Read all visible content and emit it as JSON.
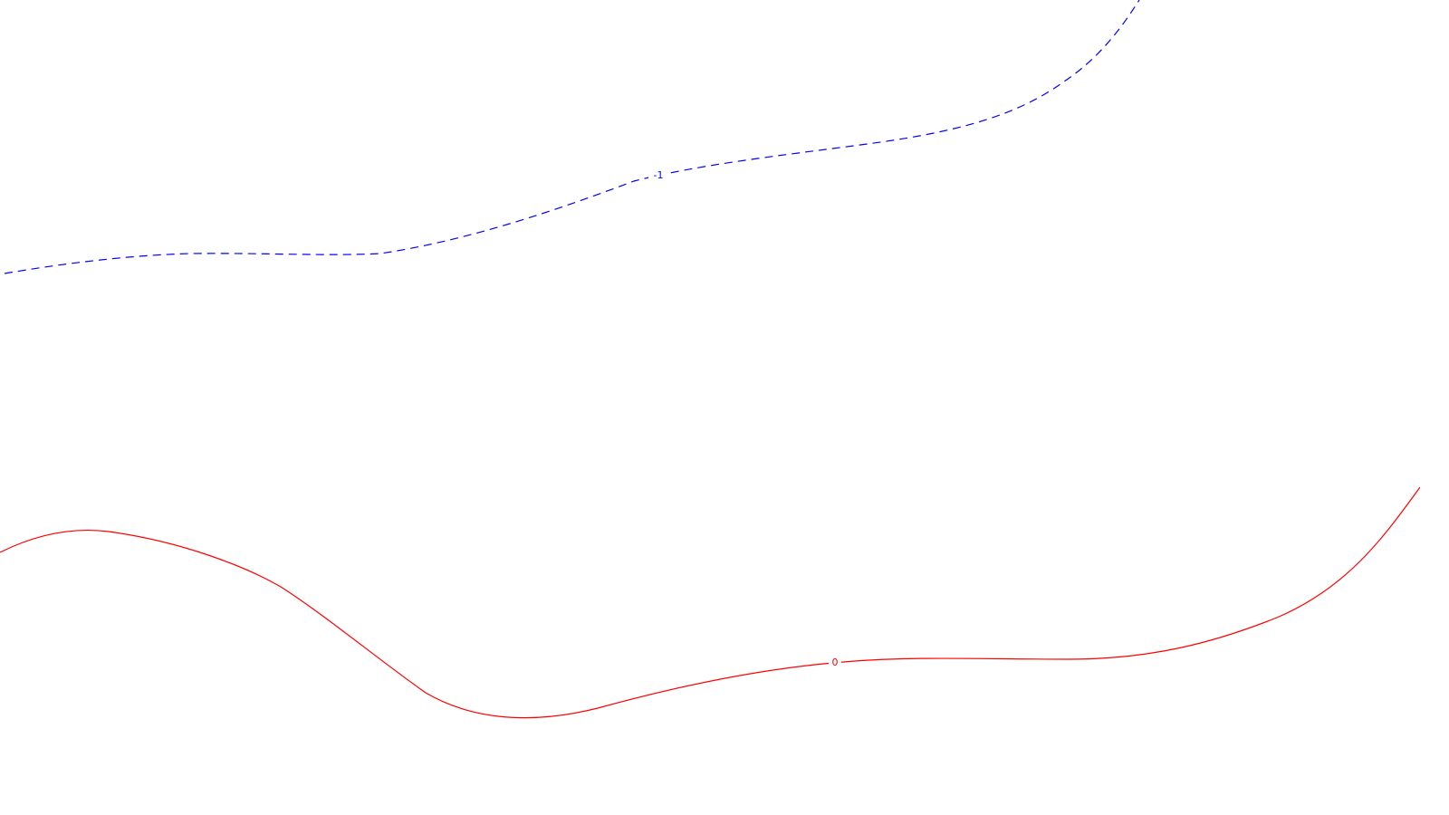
{
  "contours": [
    {
      "level": "-1",
      "label": "-1",
      "color": "#0000ff",
      "style": "dashed"
    },
    {
      "level": "0",
      "label": "0",
      "color": "#ff0000",
      "style": "solid"
    }
  ]
}
